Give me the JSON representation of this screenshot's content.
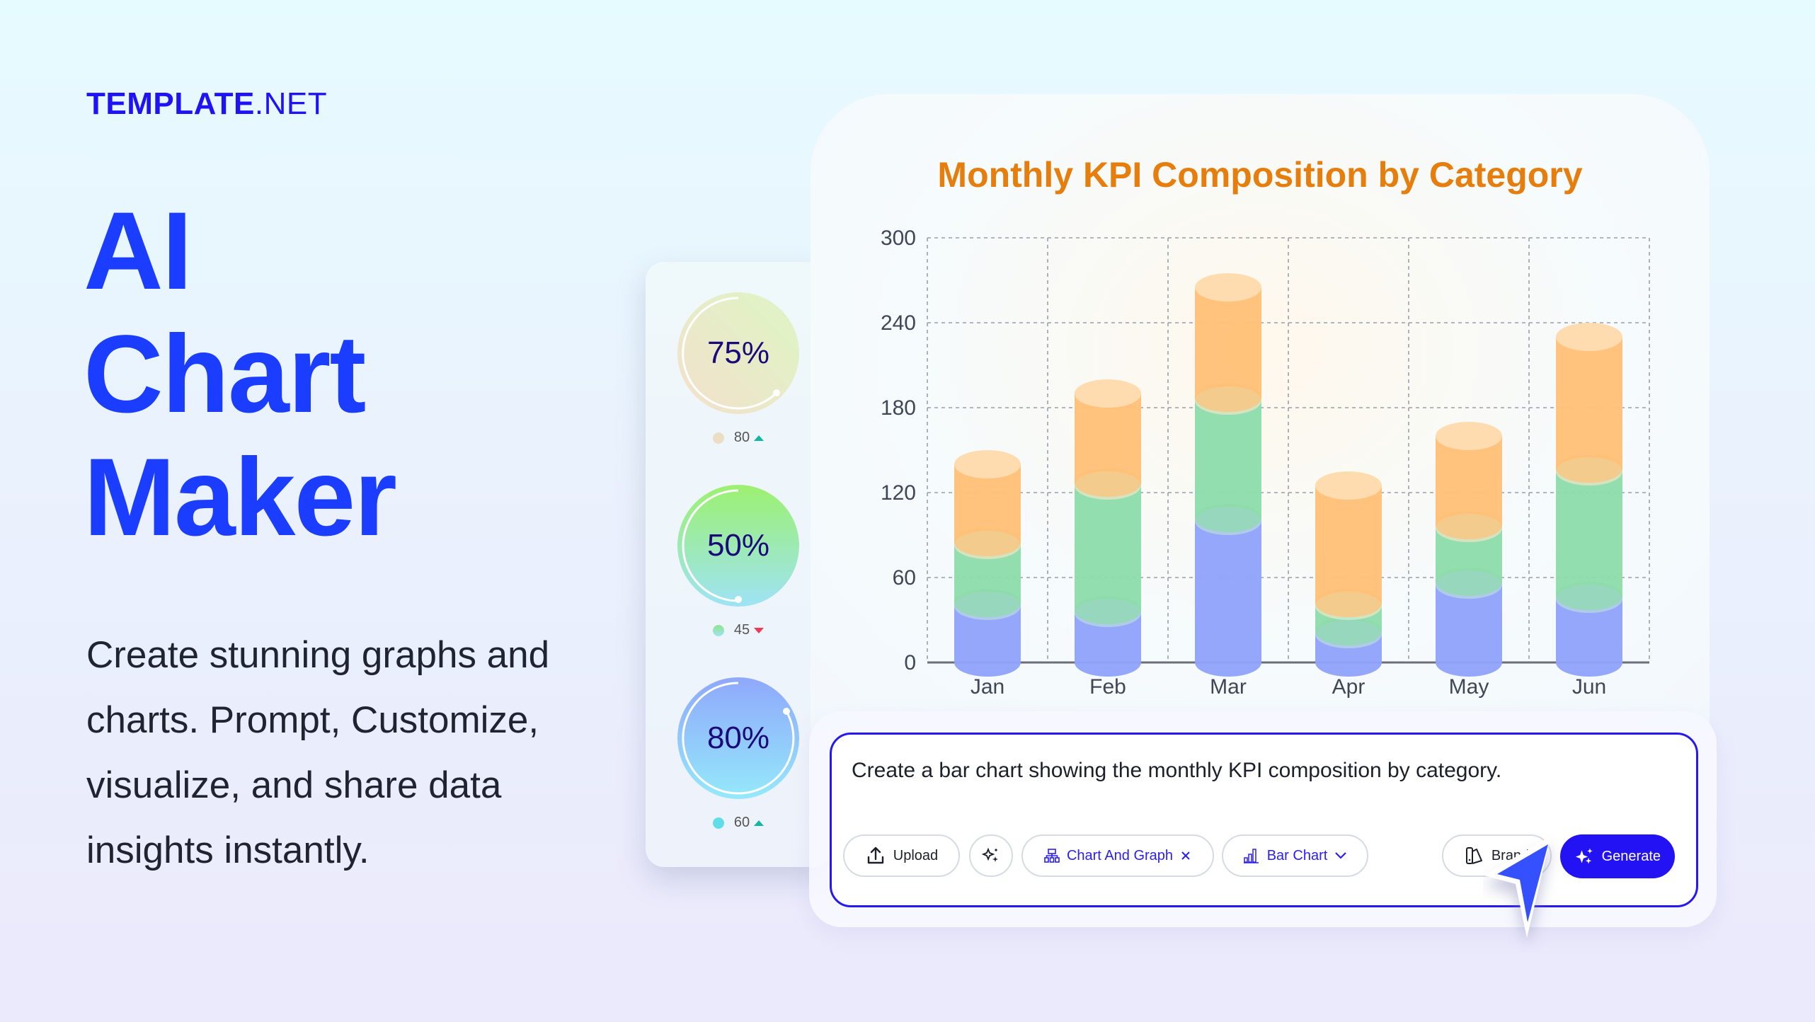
{
  "brand": {
    "logo_bold": "TEMPLATE",
    "logo_light": ".NET"
  },
  "hero": {
    "headline": [
      "AI",
      "Chart",
      "Maker"
    ],
    "description": "Create stunning graphs and charts. Prompt, Customize, visualize, and share data insights instantly."
  },
  "kpi_panel": {
    "items": [
      {
        "percent": "75%",
        "value": "80",
        "trend": "up",
        "dot_color": "#eadfc2"
      },
      {
        "percent": "50%",
        "value": "45",
        "trend": "down",
        "dot_color": "#8ee59a"
      },
      {
        "percent": "80%",
        "value": "60",
        "trend": "up",
        "dot_color": "#5fdde9"
      }
    ]
  },
  "chart_card": {
    "title": "Monthly KPI Composition by Category"
  },
  "chart_data": {
    "type": "bar",
    "stacked": true,
    "style": "3d-cylinder",
    "title": "Monthly KPI Composition by Category",
    "categories": [
      "Jan",
      "Feb",
      "Mar",
      "Apr",
      "May",
      "Jun"
    ],
    "series": [
      {
        "name": "Blue",
        "color": "#8fa2fb",
        "values": [
          40,
          35,
          100,
          20,
          55,
          45
        ]
      },
      {
        "name": "Green",
        "color": "#8ddcaa",
        "values": [
          43,
          90,
          85,
          20,
          40,
          90
        ]
      },
      {
        "name": "Orange",
        "color": "#ffc076",
        "values": [
          57,
          65,
          80,
          85,
          65,
          95
        ]
      }
    ],
    "totals": [
      140,
      190,
      265,
      125,
      160,
      230
    ],
    "xlabel": "",
    "ylabel": "",
    "yticks": [
      0,
      60,
      120,
      180,
      240,
      300
    ],
    "ylim": [
      0,
      300
    ],
    "grid": true,
    "legend": "none"
  },
  "prompt": {
    "text": "Create a bar chart showing the monthly KPI composition by category.",
    "buttons": {
      "upload": "Upload",
      "chart_and_graph": "Chart And Graph",
      "bar_chart": "Bar Chart",
      "brand": "Brand",
      "generate": "Generate"
    }
  },
  "colors": {
    "accent": "#2312f4",
    "headline": "#1a3dff",
    "title_orange": "#e57e0c"
  }
}
